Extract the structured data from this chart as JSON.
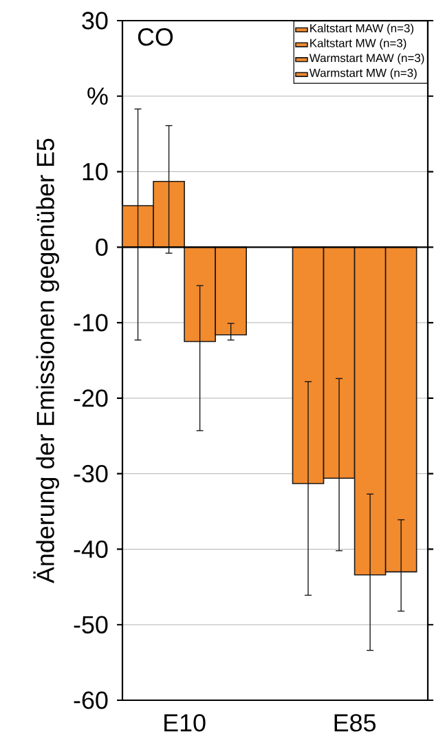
{
  "chart_data": {
    "type": "bar",
    "title": "CO",
    "ylabel": "Änderung der Emissionen gegenüber E5",
    "categories": [
      "E10",
      "E85"
    ],
    "series": [
      {
        "name": "Kaltstart MAW (n=3)",
        "color": "#f28a2e",
        "values": [
          5.5,
          -31.3
        ],
        "errors": [
          [
            -12.3,
            18.3
          ],
          [
            -46.1,
            -17.8
          ]
        ]
      },
      {
        "name": "Kaltstart MW (n=3)",
        "color": "#f28a2e",
        "values": [
          8.7,
          -30.6
        ],
        "errors": [
          [
            -0.8,
            16.1
          ],
          [
            -40.2,
            -17.4
          ]
        ]
      },
      {
        "name": "Warmstart MAW (n=3)",
        "color": "#f28a2e",
        "values": [
          -12.5,
          -43.4
        ],
        "errors": [
          [
            -24.3,
            -5.1
          ],
          [
            -53.4,
            -32.7
          ]
        ]
      },
      {
        "name": "Warmstart MW (n=3)",
        "color": "#f28a2e",
        "values": [
          -11.6,
          -43.0
        ],
        "errors": [
          [
            -12.3,
            -10.1
          ],
          [
            -48.2,
            -36.1
          ]
        ]
      }
    ],
    "ylim": [
      -60,
      30
    ],
    "yticks": [
      -60,
      -50,
      -40,
      -30,
      -20,
      -10,
      0,
      10,
      {
        "value": 20,
        "label": "%"
      },
      30
    ],
    "grid": "y",
    "legend": "top right"
  }
}
